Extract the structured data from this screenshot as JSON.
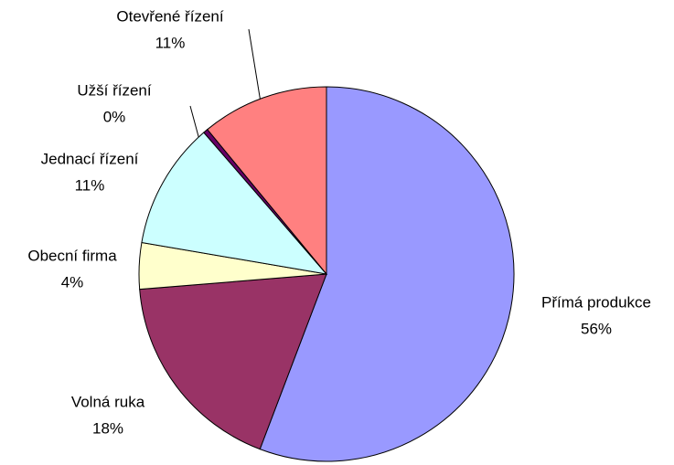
{
  "chart_data": {
    "type": "pie",
    "categories": [
      "Přímá produkce",
      "Volná ruka",
      "Obecní firma",
      "Jednací řízení",
      "Užší řízení",
      "Otevřené řízení"
    ],
    "values": [
      56,
      18,
      4,
      11,
      0.4,
      11
    ],
    "value_labels": [
      "56%",
      "18%",
      "4%",
      "11%",
      "0%",
      "11%"
    ],
    "colors": [
      "#9999ff",
      "#993366",
      "#ffffcc",
      "#ccffff",
      "#660066",
      "#ff8080"
    ]
  }
}
